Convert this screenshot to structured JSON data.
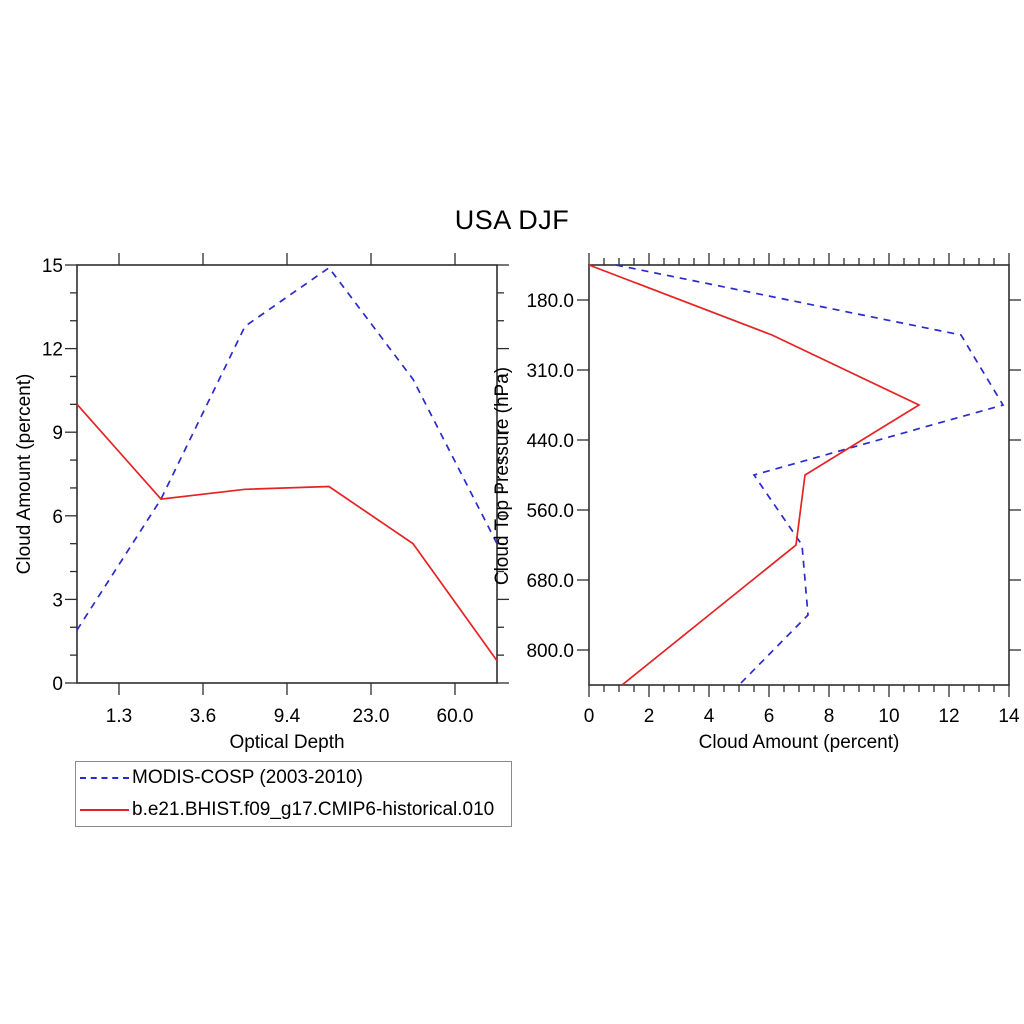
{
  "title": "USA DJF",
  "colors": {
    "modis": "#2a2acd",
    "model": "#e62222",
    "axis": "#2e2e2e"
  },
  "legend": {
    "items": [
      {
        "label": "MODIS-COSP (2003-2010)",
        "color": "#2a2acd",
        "style": "dashed"
      },
      {
        "label": "b.e21.BHIST.f09_g17.CMIP6-historical.010",
        "color": "#e62222",
        "style": "solid"
      }
    ]
  },
  "left_chart_titles": {
    "xlabel": "Optical Depth",
    "ylabel": "Cloud Amount (percent)"
  },
  "right_chart_titles": {
    "xlabel": "Cloud Amount (percent)",
    "ylabel": "Cloud Top Pressure (hPa)"
  },
  "chart_data": [
    {
      "type": "line",
      "panel": "left",
      "title": "USA DJF",
      "xlabel": "Optical Depth",
      "ylabel": "Cloud Amount (percent)",
      "x_axis_note": "6 optical-depth bins; points at bin centers, ticks at bin edges",
      "x_tick_labels": [
        "1.3",
        "3.6",
        "9.4",
        "23.0",
        "60.0"
      ],
      "y_ticks": [
        0,
        3,
        6,
        9,
        12,
        15
      ],
      "y_tick_labels": [
        "0",
        "3",
        "6",
        "9",
        "12",
        "15"
      ],
      "ylim": [
        0,
        15
      ],
      "y_minor_step": 1,
      "grid": false,
      "series": [
        {
          "name": "MODIS-COSP (2003-2010)",
          "color": "#2a2acd",
          "style": "dashed",
          "values": [
            1.9,
            6.6,
            12.8,
            14.9,
            10.9,
            5.0
          ]
        },
        {
          "name": "b.e21.BHIST.f09_g17.CMIP6-historical.010",
          "color": "#e62222",
          "style": "solid",
          "values": [
            10.0,
            6.6,
            6.95,
            7.05,
            5.0,
            0.8
          ]
        }
      ]
    },
    {
      "type": "line",
      "panel": "right",
      "title": "USA DJF",
      "xlabel": "Cloud Amount (percent)",
      "ylabel": "Cloud Top Pressure (hPa)",
      "y_axis_note": "7 cloud-top-pressure bins top-to-bottom; points at bin centers, ticks at bin edges",
      "y_tick_labels": [
        "180.0",
        "310.0",
        "440.0",
        "560.0",
        "680.0",
        "800.0"
      ],
      "x_ticks": [
        0,
        2,
        4,
        6,
        8,
        10,
        12,
        14
      ],
      "x_tick_labels": [
        "0",
        "2",
        "4",
        "6",
        "8",
        "10",
        "12",
        "14"
      ],
      "xlim": [
        0,
        14
      ],
      "x_minor_step": 0.5,
      "grid": false,
      "series": [
        {
          "name": "MODIS-COSP (2003-2010)",
          "color": "#2a2acd",
          "style": "dashed",
          "values": [
            0.9,
            12.4,
            13.8,
            5.5,
            7.1,
            7.3,
            5.0
          ]
        },
        {
          "name": "b.e21.BHIST.f09_g17.CMIP6-historical.010",
          "color": "#e62222",
          "style": "solid",
          "values": [
            0.0,
            6.1,
            11.0,
            7.2,
            6.9,
            4.0,
            1.1
          ]
        }
      ]
    }
  ]
}
